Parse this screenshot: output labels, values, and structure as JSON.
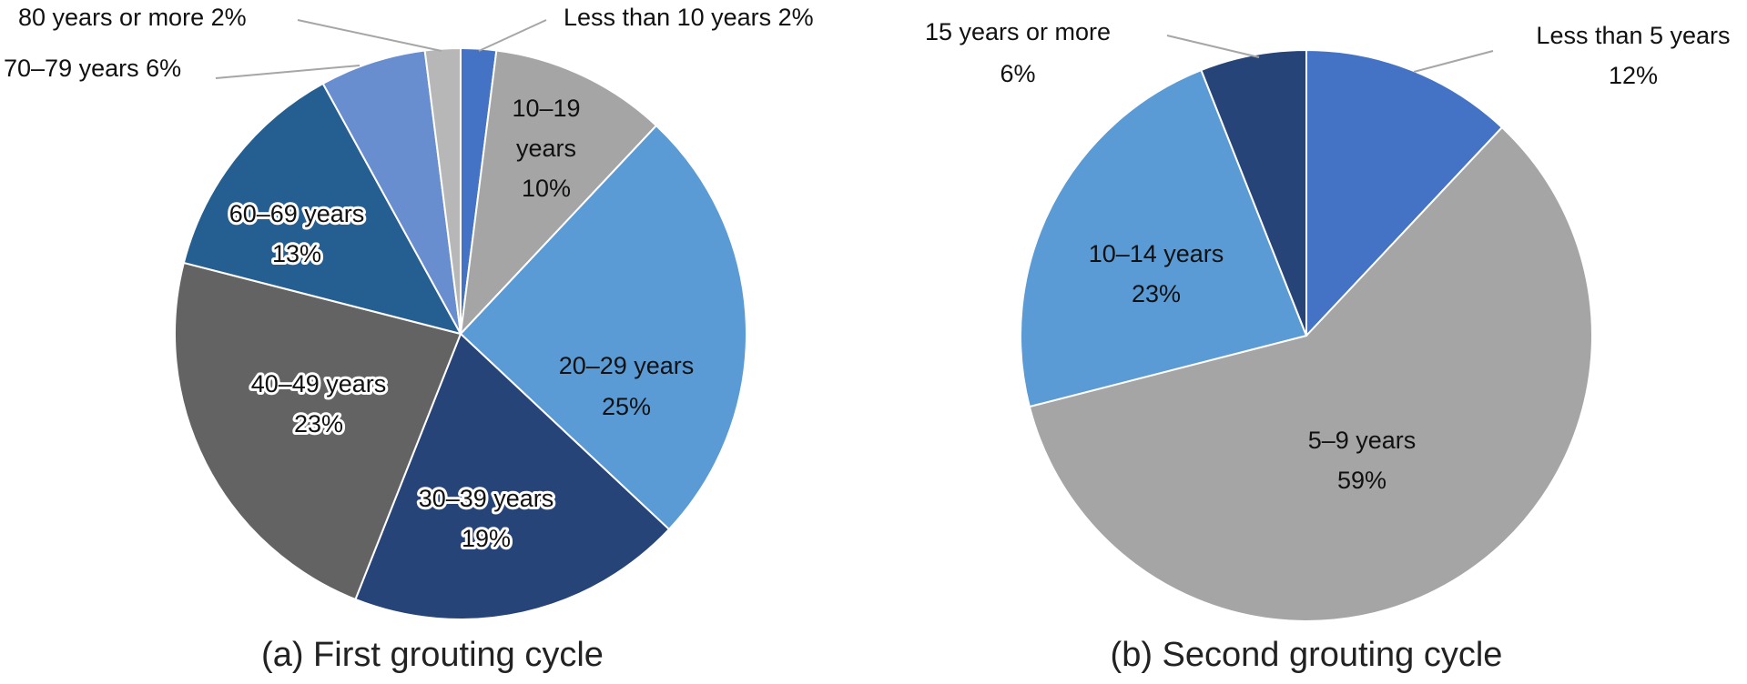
{
  "chart_data": [
    {
      "type": "pie",
      "caption": "(a) First grouting cycle",
      "slices": [
        {
          "label": "Less than 10 years",
          "value": 2,
          "pct_text": "2%",
          "color": "#4472C4",
          "label_placement": "outside"
        },
        {
          "label": "10–19 years",
          "value": 10,
          "pct_text": "10%",
          "color": "#A5A5A5",
          "label_placement": "inside"
        },
        {
          "label": "20–29 years",
          "value": 25,
          "pct_text": "25%",
          "color": "#5B9BD5",
          "label_placement": "inside"
        },
        {
          "label": "30–39 years",
          "value": 19,
          "pct_text": "19%",
          "color": "#264478",
          "label_placement": "inside"
        },
        {
          "label": "40–49 years",
          "value": 23,
          "pct_text": "23%",
          "color": "#636363",
          "label_placement": "inside"
        },
        {
          "label": "60–69 years",
          "value": 13,
          "pct_text": "13%",
          "color": "#255E91",
          "label_placement": "inside"
        },
        {
          "label": "70–79 years",
          "value": 6,
          "pct_text": "6%",
          "color": "#698ED0",
          "label_placement": "outside"
        },
        {
          "label": "80 years or more",
          "value": 2,
          "pct_text": "2%",
          "color": "#B7B7B7",
          "label_placement": "outside"
        }
      ]
    },
    {
      "type": "pie",
      "caption": "(b) Second grouting cycle",
      "slices": [
        {
          "label": "Less than 5 years",
          "value": 12,
          "pct_text": "12%",
          "color": "#4472C4",
          "label_placement": "outside"
        },
        {
          "label": "5–9 years",
          "value": 59,
          "pct_text": "59%",
          "color": "#A5A5A5",
          "label_placement": "inside"
        },
        {
          "label": "10–14 years",
          "value": 23,
          "pct_text": "23%",
          "color": "#5B9BD5",
          "label_placement": "inside"
        },
        {
          "label": "15 years or more",
          "value": 6,
          "pct_text": "6%",
          "color": "#264478",
          "label_placement": "outside"
        }
      ]
    }
  ]
}
